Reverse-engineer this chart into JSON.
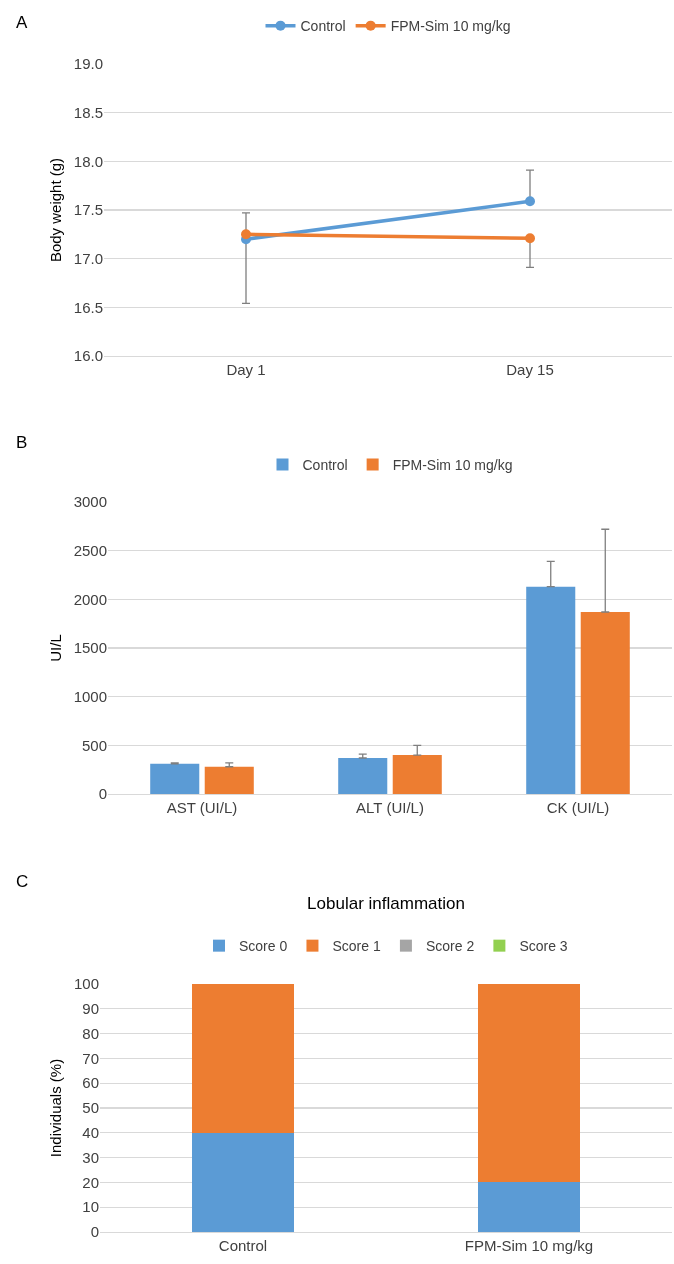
{
  "chart_data": [
    {
      "type": "line",
      "annotations": [
        "A"
      ],
      "ylabel": "Body weight (g)",
      "categories": [
        "Day 1",
        "Day 15"
      ],
      "series": [
        {
          "name": "Control",
          "color": "#5b9bd5",
          "values": [
            17.2,
            17.59
          ],
          "errors": [
            [
              16.54,
              17.2
            ],
            [
              17.59,
              17.91
            ]
          ]
        },
        {
          "name": "FPM-Sim 10 mg/kg",
          "color": "#ed7d31",
          "values": [
            17.25,
            17.21
          ],
          "errors": [
            [
              17.25,
              17.47
            ],
            [
              16.91,
              17.21
            ]
          ]
        }
      ],
      "ylim": [
        16,
        19
      ],
      "yticks": [
        {
          "value": 16,
          "label": "16.0"
        },
        {
          "value": 16.5,
          "label": "16.5"
        },
        {
          "value": 17,
          "label": "17.0"
        },
        {
          "value": 17.5,
          "label": "17.5"
        },
        {
          "value": 18,
          "label": "18.0"
        },
        {
          "value": 18.5,
          "label": "18.5"
        },
        {
          "value": 19,
          "label": "19.0"
        }
      ],
      "grid": "y",
      "legend": "top",
      "marker": "circle",
      "line_style": "solid"
    },
    {
      "type": "bar",
      "annotations": [
        "B"
      ],
      "ylabel": "UI/L",
      "categories": [
        "AST (UI/L)",
        "ALT (UI/L)",
        "CK (UI/L)"
      ],
      "series": [
        {
          "name": "Control",
          "color": "#5b9bd5",
          "values": [
            310,
            370,
            2130
          ],
          "errors": [
            [
              310,
              320
            ],
            [
              370,
              410
            ],
            [
              2130,
              2390
            ]
          ]
        },
        {
          "name": "FPM-Sim 10 mg/kg",
          "color": "#ed7d31",
          "values": [
            280,
            400,
            1870
          ],
          "errors": [
            [
              280,
              320
            ],
            [
              400,
              500
            ],
            [
              1870,
              2720
            ]
          ]
        }
      ],
      "ylim": [
        0,
        3000
      ],
      "yticks": [
        0,
        500,
        1000,
        1500,
        2000,
        2500,
        3000
      ],
      "grid": "y",
      "legend": "top"
    },
    {
      "type": "bar",
      "stacked": true,
      "title": "Lobular inflammation",
      "annotations": [
        "C"
      ],
      "ylabel": "Individuals (%)",
      "categories": [
        "Control",
        "FPM-Sim 10 mg/kg"
      ],
      "series": [
        {
          "name": "Score 0",
          "color": "#5b9bd5",
          "values": [
            40,
            20
          ]
        },
        {
          "name": "Score 1",
          "color": "#ed7d31",
          "values": [
            60,
            80
          ]
        },
        {
          "name": "Score 2",
          "color": "#a5a5a5",
          "values": [
            0,
            0
          ]
        },
        {
          "name": "Score 3",
          "color": "#92d050",
          "values": [
            0,
            0
          ]
        }
      ],
      "ylim": [
        0,
        100
      ],
      "yticks": [
        0,
        10,
        20,
        30,
        40,
        50,
        60,
        70,
        80,
        90,
        100
      ],
      "grid": "y",
      "legend": "top"
    }
  ]
}
